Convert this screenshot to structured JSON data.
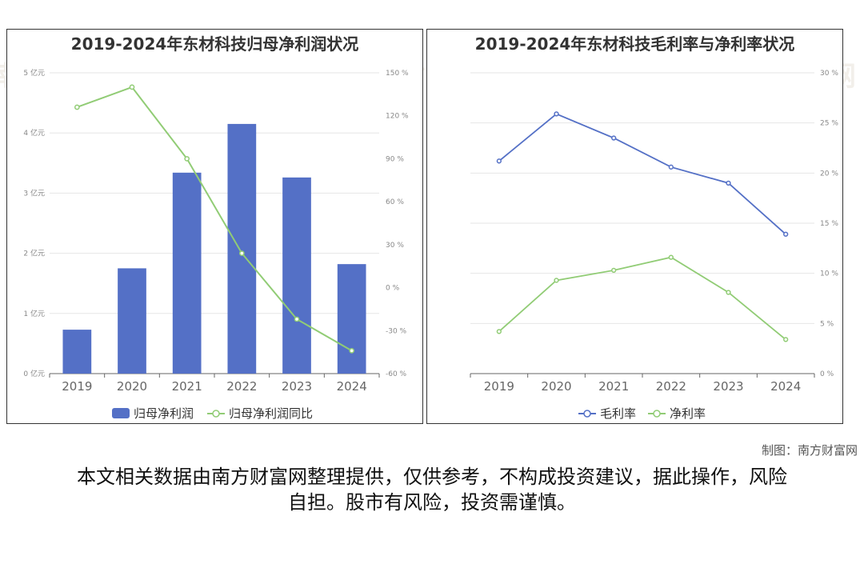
{
  "watermark": "南方财富网",
  "credit": "制图：南方财富网",
  "disclaimer": "本文相关数据由南方财富网整理提供，仅供参考，不构成投资建议，据此操作，风险自担。股市有风险，投资需谨慎。",
  "chart_data": [
    {
      "type": "bar",
      "title": "2019-2024年东材科技归母净利润状况",
      "categories": [
        "2019",
        "2020",
        "2021",
        "2022",
        "2023",
        "2024"
      ],
      "series": [
        {
          "name": "归母净利润",
          "type": "bar",
          "axis": "left",
          "values": [
            0.73,
            1.75,
            3.34,
            4.15,
            3.26,
            1.82
          ],
          "color": "#5470c6"
        },
        {
          "name": "归母净利润同比",
          "type": "line",
          "axis": "right",
          "values": [
            126,
            140,
            90,
            24,
            -22,
            -44
          ],
          "color": "#91cc75"
        }
      ],
      "y_left": {
        "ticks": [
          0,
          1,
          2,
          3,
          4,
          5
        ],
        "unit": "亿元",
        "range": [
          0,
          5
        ]
      },
      "y_right": {
        "ticks": [
          -60,
          -30,
          0,
          30,
          60,
          90,
          120,
          150
        ],
        "unit": "%",
        "range": [
          -60,
          150
        ]
      },
      "legend": "bottom-center",
      "grid": true
    },
    {
      "type": "line",
      "title": "2019-2024年东材科技毛利率与净利率状况",
      "categories": [
        "2019",
        "2020",
        "2021",
        "2022",
        "2023",
        "2024"
      ],
      "series": [
        {
          "name": "毛利率",
          "values": [
            21.2,
            25.9,
            23.5,
            20.6,
            19.0,
            13.9
          ],
          "color": "#5470c6"
        },
        {
          "name": "净利率",
          "values": [
            4.2,
            9.3,
            10.3,
            11.6,
            8.1,
            3.4
          ],
          "color": "#91cc75"
        }
      ],
      "y_right": {
        "ticks": [
          0,
          5,
          10,
          15,
          20,
          25,
          30
        ],
        "unit": "%",
        "range": [
          0,
          30
        ]
      },
      "legend": "bottom-center",
      "grid": true
    }
  ]
}
